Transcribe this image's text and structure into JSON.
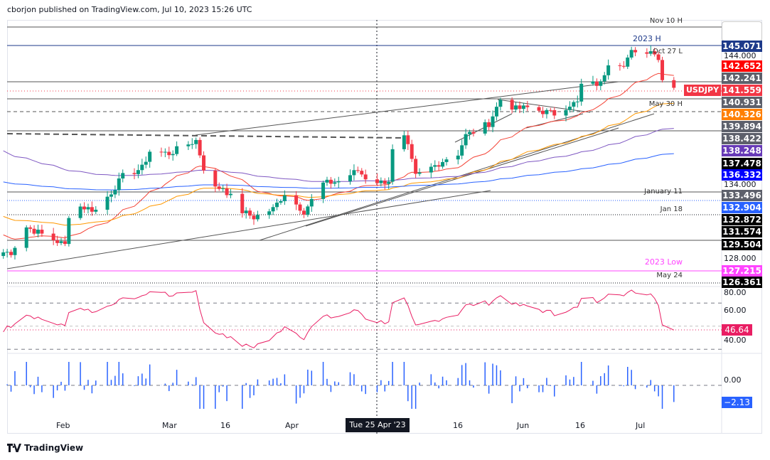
{
  "header": {
    "text": "cborjon published on TradingView.com, Jul 10, 2023 15:26 UTC"
  },
  "symbol": {
    "label": "USDJPY",
    "color": "#f23645"
  },
  "price_axis": {
    "ticks": [
      "144.000",
      "134.000",
      "128.000"
    ],
    "labels": [
      {
        "value": "145.071",
        "bg": "#1e3a8a",
        "fg": "#ffffff"
      },
      {
        "value": "142.652",
        "bg": "#ff0000",
        "fg": "#ffffff"
      },
      {
        "value": "142.241",
        "bg": "#5d606b",
        "fg": "#ffffff"
      },
      {
        "value": "141.559",
        "bg": "#f23645",
        "fg": "#ffffff"
      },
      {
        "value": "140.931",
        "bg": "#5d606b",
        "fg": "#ffffff"
      },
      {
        "value": "140.326",
        "bg": "#ff7f00",
        "fg": "#ffffff"
      },
      {
        "value": "139.894",
        "bg": "#5d606b",
        "fg": "#ffffff"
      },
      {
        "value": "138.422",
        "bg": "#5d606b",
        "fg": "#ffffff"
      },
      {
        "value": "138.248",
        "bg": "#673ab7",
        "fg": "#ffffff"
      },
      {
        "value": "137.478",
        "bg": "#000000",
        "fg": "#ffffff"
      },
      {
        "value": "136.332",
        "bg": "#0000ff",
        "fg": "#ffffff"
      },
      {
        "value": "133.496",
        "bg": "#5d606b",
        "fg": "#ffffff"
      },
      {
        "value": "132.904",
        "bg": "#2962ff",
        "fg": "#ffffff"
      },
      {
        "value": "132.872",
        "bg": "#000000",
        "fg": "#ffffff"
      },
      {
        "value": "131.574",
        "bg": "#000000",
        "fg": "#ffffff"
      },
      {
        "value": "129.504",
        "bg": "#000000",
        "fg": "#ffffff"
      },
      {
        "value": "127.215",
        "bg": "#ff44ff",
        "fg": "#ffffff"
      },
      {
        "value": "126.361",
        "bg": "#000000",
        "fg": "#ffffff"
      }
    ]
  },
  "level_labels": [
    {
      "text": "Nov 10 H",
      "color": "#333333"
    },
    {
      "text": "2023 H",
      "color": "#1e3a8a"
    },
    {
      "text": "Oct 27 L",
      "color": "#333333"
    },
    {
      "text": "May 30 H",
      "color": "#333333"
    },
    {
      "text": "January 11",
      "color": "#333333"
    },
    {
      "text": "Jan 18",
      "color": "#333333"
    },
    {
      "text": "2023 Low",
      "color": "#ff44ff"
    },
    {
      "text": "May 24",
      "color": "#333333"
    }
  ],
  "rsi": {
    "ticks": [
      "80.00",
      "60.00",
      "40.00"
    ],
    "value": "46.64",
    "color": "#e91e63"
  },
  "macd": {
    "ticks": [
      "0.00"
    ],
    "value": "−2.13",
    "color": "#2962ff"
  },
  "time_axis": {
    "labels": [
      "Feb",
      "Mar",
      "16",
      "Apr",
      "16",
      "Jun",
      "16",
      "Jul"
    ],
    "crosshair": "Tue 25 Apr '23"
  },
  "footer": {
    "brand": "TradingView"
  },
  "chart_data": {
    "type": "candlestick",
    "symbol": "USDJPY",
    "timeframe": "daily",
    "up_color": "#089981",
    "down_color": "#f23645",
    "ylim": [
      125.5,
      147
    ],
    "closes": [
      [
        "2023-01-19",
        127.9
      ],
      [
        "2023-01-23",
        130.0
      ],
      [
        "2023-01-27",
        129.4
      ],
      [
        "2023-02-02",
        128.5
      ],
      [
        "2023-02-03",
        131.0
      ],
      [
        "2023-02-06",
        131.7
      ],
      [
        "2023-02-10",
        131.4
      ],
      [
        "2023-02-14",
        132.9
      ],
      [
        "2023-02-17",
        134.2
      ],
      [
        "2023-02-22",
        134.9
      ],
      [
        "2023-02-24",
        136.3
      ],
      [
        "2023-03-01",
        136.1
      ],
      [
        "2023-03-08",
        137.2
      ],
      [
        "2023-03-10",
        134.9
      ],
      [
        "2023-03-13",
        133.2
      ],
      [
        "2023-03-15",
        133.3
      ],
      [
        "2023-03-20",
        131.3
      ],
      [
        "2023-03-23",
        130.8
      ],
      [
        "2023-03-28",
        131.5
      ],
      [
        "2023-03-31",
        132.8
      ],
      [
        "2023-04-05",
        131.3
      ],
      [
        "2023-04-10",
        133.6
      ],
      [
        "2023-04-14",
        133.8
      ],
      [
        "2023-04-19",
        134.7
      ],
      [
        "2023-04-21",
        134.1
      ],
      [
        "2023-04-25",
        133.7
      ],
      [
        "2023-04-27",
        133.9
      ],
      [
        "2023-04-28",
        136.3
      ],
      [
        "2023-05-01",
        137.4
      ],
      [
        "2023-05-02",
        136.6
      ],
      [
        "2023-05-04",
        134.2
      ],
      [
        "2023-05-09",
        135.1
      ],
      [
        "2023-05-12",
        135.7
      ],
      [
        "2023-05-15",
        136.1
      ],
      [
        "2023-05-17",
        137.6
      ],
      [
        "2023-05-19",
        137.9
      ],
      [
        "2023-05-23",
        138.6
      ],
      [
        "2023-05-26",
        140.6
      ],
      [
        "2023-05-30",
        139.8
      ],
      [
        "2023-06-02",
        139.9
      ],
      [
        "2023-06-06",
        139.6
      ],
      [
        "2023-06-09",
        139.4
      ],
      [
        "2023-06-13",
        140.2
      ],
      [
        "2023-06-15",
        140.3
      ],
      [
        "2023-06-16",
        141.8
      ],
      [
        "2023-06-21",
        141.9
      ],
      [
        "2023-06-23",
        143.7
      ],
      [
        "2023-06-27",
        143.6
      ],
      [
        "2023-06-29",
        144.5
      ],
      [
        "2023-06-30",
        144.3
      ],
      [
        "2023-07-03",
        144.6
      ],
      [
        "2023-07-05",
        144.6
      ],
      [
        "2023-07-06",
        144.0
      ],
      [
        "2023-07-07",
        142.2
      ],
      [
        "2023-07-10",
        141.56
      ]
    ],
    "moving_averages": [
      {
        "color": "#f44336",
        "last": "142.652"
      },
      {
        "color": "#ff9800",
        "last": "140.326"
      },
      {
        "color": "#7e57c2",
        "last": "138.248"
      },
      {
        "color": "#2962ff",
        "last": "136.332"
      }
    ]
  }
}
